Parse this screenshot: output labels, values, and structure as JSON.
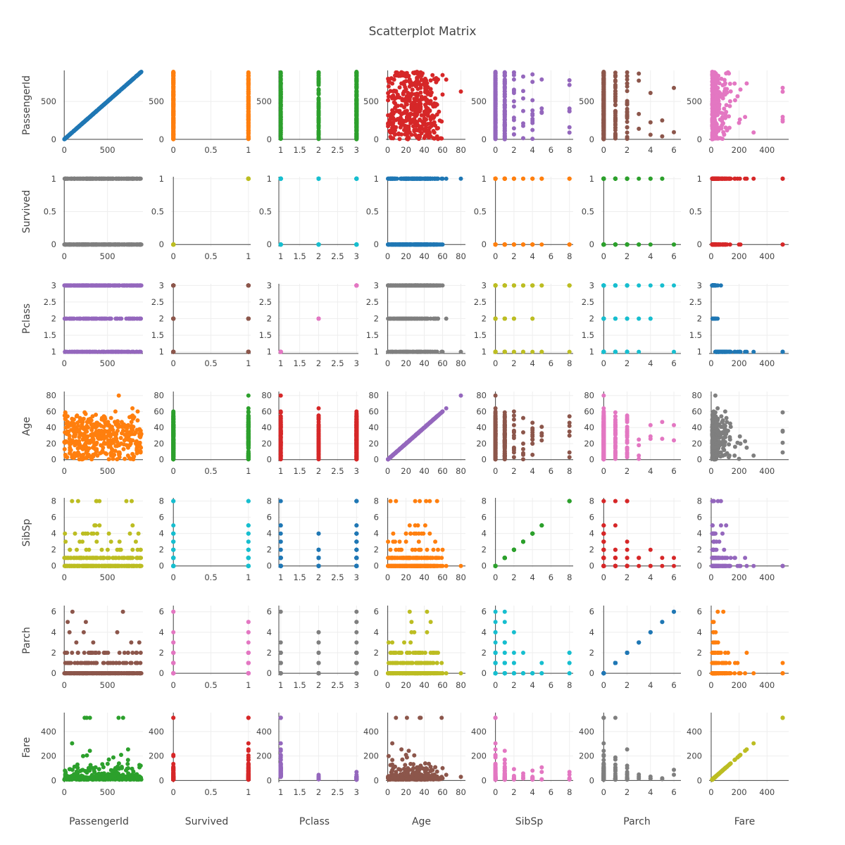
{
  "chart_data": {
    "type": "scatter",
    "title": "Scatterplot Matrix",
    "variables": [
      {
        "name": "PassengerId",
        "range": [
          -10,
          910
        ],
        "ticks": [
          0,
          500
        ],
        "tick_labels": [
          "0",
          "500"
        ]
      },
      {
        "name": "Survived",
        "range": [
          -0.03,
          1.03
        ],
        "ticks": [
          0,
          0.5,
          1
        ],
        "tick_labels": [
          "0",
          "0.5",
          "1"
        ]
      },
      {
        "name": "Pclass",
        "range": [
          0.95,
          3.05
        ],
        "ticks": [
          1,
          1.5,
          2,
          2.5,
          3
        ],
        "tick_labels": [
          "1",
          "1.5",
          "2",
          "2.5",
          "3"
        ]
      },
      {
        "name": "Age",
        "range": [
          -2,
          85
        ],
        "ticks": [
          0,
          20,
          40,
          60,
          80
        ],
        "tick_labels": [
          "0",
          "20",
          "40",
          "60",
          "80"
        ]
      },
      {
        "name": "SibSp",
        "range": [
          -0.2,
          8.4
        ],
        "ticks": [
          0,
          2,
          4,
          6,
          8
        ],
        "tick_labels": [
          "0",
          "2",
          "4",
          "6",
          "8"
        ]
      },
      {
        "name": "Parch",
        "range": [
          -0.2,
          6.6
        ],
        "ticks": [
          0,
          2,
          4,
          6
        ],
        "tick_labels": [
          "0",
          "2",
          "4",
          "6"
        ]
      },
      {
        "name": "Fare",
        "range": [
          -15,
          555
        ],
        "ticks": [
          0,
          200,
          400
        ],
        "tick_labels": [
          "0",
          "200",
          "400"
        ]
      }
    ],
    "colors": [
      "#1f77b4",
      "#ff7f0e",
      "#2ca02c",
      "#d62728",
      "#9467bd",
      "#8c564b",
      "#e377c2",
      "#7f7f7f",
      "#bcbd22",
      "#17becf"
    ],
    "observed_values": {
      "Survived": [
        0,
        1
      ],
      "Pclass": [
        1,
        2,
        3
      ],
      "SibSp": [
        0,
        1,
        2,
        3,
        4,
        5,
        8
      ],
      "Parch": [
        0,
        1,
        2,
        3,
        4,
        5,
        6
      ],
      "Age_range": [
        0.42,
        80
      ],
      "Fare_range": [
        0,
        512.33
      ],
      "PassengerId_range": [
        1,
        891
      ]
    },
    "grid": true,
    "legend": "none"
  }
}
